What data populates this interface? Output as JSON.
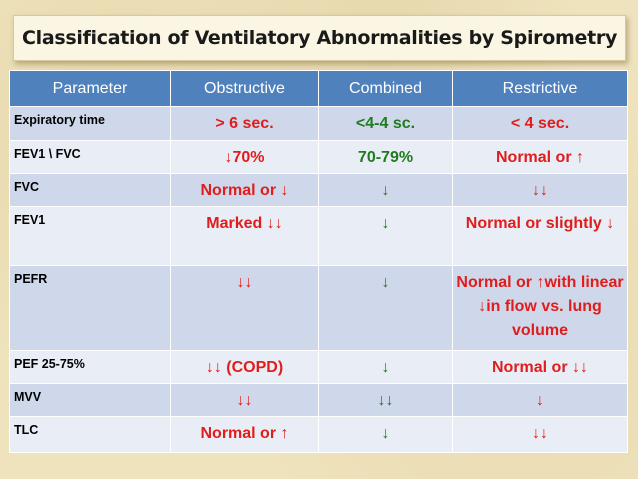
{
  "title": "Classification of Ventilatory Abnormalities by Spirometry",
  "headers": [
    "Parameter",
    "Obstructive",
    "Combined",
    "Restrictive"
  ],
  "rows": [
    {
      "parameter": "Expiratory time",
      "obstructive": "> 6 sec.",
      "combined": "<4-4 sc.",
      "restrictive": "< 4 sec."
    },
    {
      "parameter": "FEV1 \\ FVC",
      "obstructive": "↓70%",
      "combined": "70-79%",
      "restrictive": "Normal or ↑"
    },
    {
      "parameter": "FVC",
      "obstructive": "Normal or ↓",
      "combined": "↓",
      "restrictive": "↓↓"
    },
    {
      "parameter": "FEV1",
      "obstructive": "Marked ↓↓",
      "combined": "↓",
      "restrictive": "Normal or slightly ↓"
    },
    {
      "parameter": "PEFR",
      "obstructive": "↓↓",
      "combined": "↓",
      "restrictive": "Normal or ↑with linear ↓in flow vs. lung volume"
    },
    {
      "parameter": "PEF 25-75%",
      "obstructive": "↓↓ (COPD)",
      "combined": "↓",
      "restrictive": "Normal or ↓↓"
    },
    {
      "parameter": "MVV",
      "obstructive": "↓↓",
      "combined": "↓↓",
      "restrictive": "↓"
    },
    {
      "parameter": "TLC",
      "obstructive": "Normal or ↑",
      "combined": "↓",
      "restrictive": "↓↓"
    }
  ],
  "colors": {
    "header_bg": "#4f81bd",
    "row_dark": "#cfd8ea",
    "row_light": "#e9edf5",
    "obstructive_text": "#e01d1d",
    "combined_text": "#1e7c1e",
    "restrictive_text": "#e01d1d"
  }
}
